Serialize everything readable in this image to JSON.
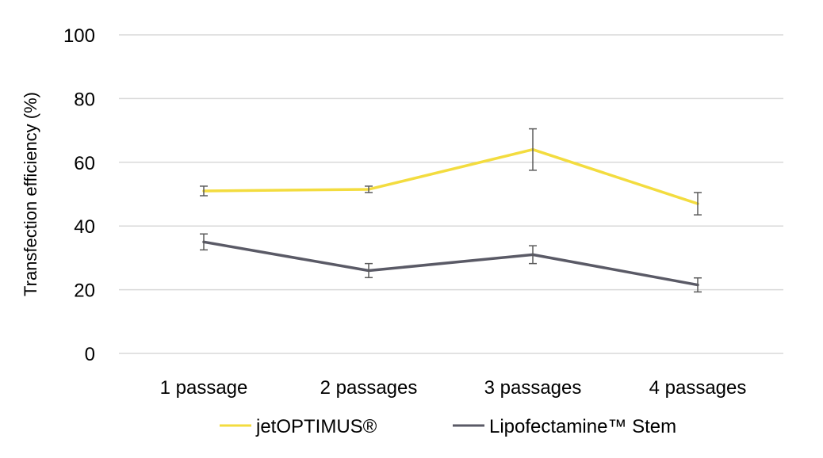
{
  "chart_data": {
    "type": "line",
    "title": "",
    "xlabel": "",
    "ylabel": "Transfection efficiency (%)",
    "ylim": [
      0,
      100
    ],
    "yticks": [
      0,
      20,
      40,
      60,
      80,
      100
    ],
    "grid": true,
    "legend_position": "bottom",
    "categories": [
      "1 passage",
      "2 passages",
      "3 passages",
      "4 passages"
    ],
    "series": [
      {
        "name": "jetOPTIMUS®",
        "color": "#f3dc3f",
        "values": [
          51,
          51.5,
          64,
          47
        ],
        "error": [
          1.5,
          1,
          6.5,
          3.5
        ]
      },
      {
        "name": "Lipofectamine™ Stem",
        "color": "#5a5a66",
        "values": [
          35,
          26,
          31,
          21.5
        ],
        "error": [
          2.5,
          2.2,
          2.8,
          2.2
        ]
      }
    ]
  }
}
